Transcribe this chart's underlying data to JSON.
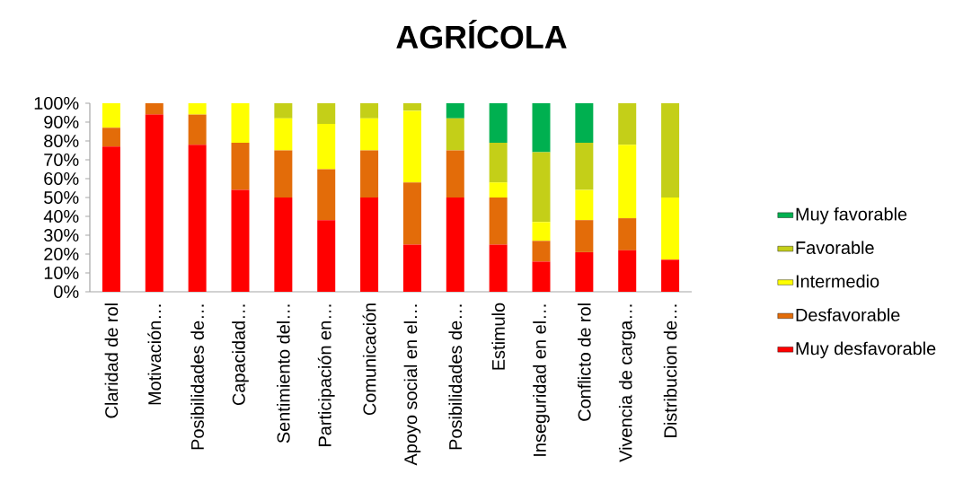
{
  "chart_data": {
    "type": "bar",
    "title": "AGRÍCOLA",
    "stacked": true,
    "categories": [
      "Claridad de rol",
      "Motivación…",
      "Posibilidades de…",
      "Capacidad…",
      "Sentimiento del…",
      "Participación en…",
      "Comunicación",
      "Apoyo social en el…",
      "Posibilidades de…",
      "Estimulo",
      "Inseguridad en el…",
      "Conflicto de rol",
      "Vivencia de carga…",
      "Distribucion de…"
    ],
    "series": [
      {
        "name": "Muy desfavorable",
        "color": "#ff0000",
        "values": [
          77,
          94,
          78,
          54,
          50,
          38,
          50,
          25,
          50,
          25,
          16,
          21,
          22,
          17
        ]
      },
      {
        "name": "Desfavorable",
        "color": "#e36c09",
        "values": [
          10,
          6,
          16,
          25,
          25,
          27,
          25,
          33,
          25,
          25,
          11,
          17,
          17,
          0
        ]
      },
      {
        "name": "Intermedio",
        "color": "#ffff00",
        "values": [
          13,
          0,
          6,
          21,
          17,
          24,
          17,
          38,
          0,
          8,
          10,
          16,
          39,
          33
        ]
      },
      {
        "name": "Favorable",
        "color": "#c4cf18",
        "values": [
          0,
          0,
          0,
          0,
          8,
          11,
          8,
          4,
          17,
          21,
          37,
          25,
          22,
          50
        ]
      },
      {
        "name": "Muy favorable",
        "color": "#00b050",
        "values": [
          0,
          0,
          0,
          0,
          0,
          0,
          0,
          0,
          8,
          21,
          26,
          21,
          0,
          0
        ]
      }
    ],
    "ylim": [
      0,
      100
    ],
    "yticks": [
      {
        "value": 0,
        "label": "0%"
      },
      {
        "value": 10,
        "label": "10%"
      },
      {
        "value": 20,
        "label": "20%"
      },
      {
        "value": 30,
        "label": "30%"
      },
      {
        "value": 40,
        "label": "40%"
      },
      {
        "value": 50,
        "label": "50%"
      },
      {
        "value": 60,
        "label": "60%"
      },
      {
        "value": 70,
        "label": "70%"
      },
      {
        "value": 80,
        "label": "80%"
      },
      {
        "value": 90,
        "label": "90%"
      },
      {
        "value": 100,
        "label": "100%"
      }
    ],
    "legend": "right"
  }
}
